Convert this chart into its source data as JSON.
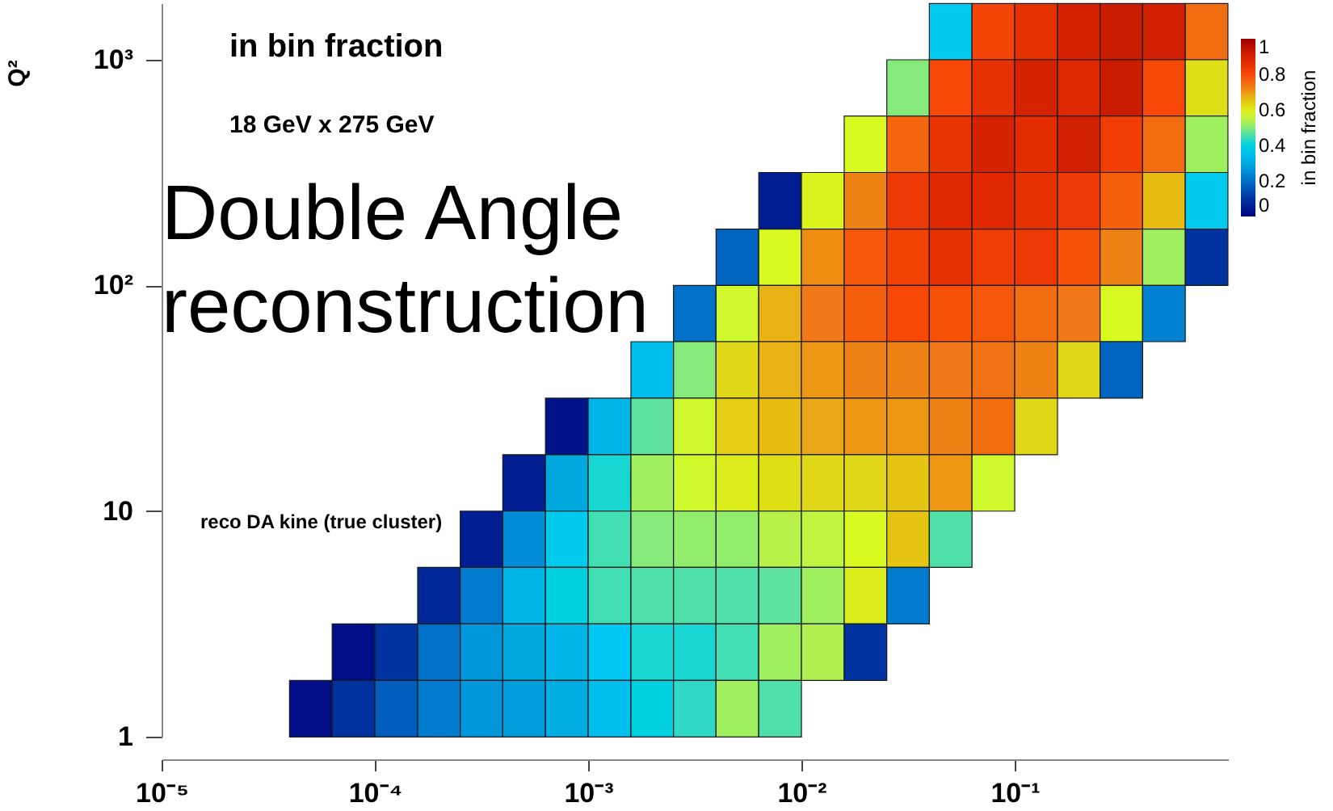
{
  "chart_data": {
    "type": "heatmap",
    "title": "in bin fraction",
    "annotations": [
      "18 GeV x 275 GeV",
      "Double Angle reconstruction",
      "reco DA kine (true cluster)"
    ],
    "ylabel": "Q²",
    "clabel": "in bin fraction",
    "log": "xy",
    "xlim": [
      1e-05,
      1
    ],
    "ylim": [
      1,
      1778
    ],
    "xticks": [
      {
        "value": 1e-05,
        "label": "10⁻⁵"
      },
      {
        "value": 0.0001,
        "label": "10⁻⁴"
      },
      {
        "value": 0.001,
        "label": "10⁻³"
      },
      {
        "value": 0.01,
        "label": "10⁻²"
      },
      {
        "value": 0.1,
        "label": "10⁻¹"
      }
    ],
    "yticks": [
      1,
      10,
      {
        "value": 100,
        "label": "10²"
      },
      {
        "value": 1000,
        "label": "10³"
      }
    ],
    "clim": [
      0,
      1
    ],
    "cticks": [
      0,
      0.2,
      0.4,
      0.6,
      0.8,
      1
    ],
    "x": [
      1.26e-05,
      2e-05,
      3.16e-05,
      5.01e-05,
      7.94e-05,
      0.000126,
      0.0002,
      0.000316,
      0.000501,
      0.000794,
      0.00126,
      0.002,
      0.00316,
      0.00501,
      0.00794,
      0.0126,
      0.02,
      0.0316,
      0.0501,
      0.0794,
      0.126,
      0.2,
      0.316,
      0.501,
      0.794
    ],
    "y": [
      1330,
      750,
      422,
      237,
      133,
      75,
      42.2,
      23.7,
      13.3,
      7.5,
      4.22,
      2.37,
      1.33
    ],
    "cells": [
      [
        null,
        null,
        null,
        null,
        null,
        null,
        null,
        null,
        null,
        null,
        null,
        null,
        null,
        null,
        null,
        null,
        null,
        null,
        0.38,
        0.81,
        0.86,
        0.9,
        0.92,
        0.91,
        0.75
      ],
      [
        null,
        null,
        null,
        null,
        null,
        null,
        null,
        null,
        null,
        null,
        null,
        null,
        null,
        null,
        null,
        null,
        null,
        0.5,
        0.8,
        0.86,
        0.9,
        0.88,
        0.92,
        0.8,
        0.62
      ],
      [
        null,
        null,
        null,
        null,
        null,
        null,
        null,
        null,
        null,
        null,
        null,
        null,
        null,
        null,
        null,
        null,
        0.58,
        0.76,
        0.85,
        0.9,
        0.87,
        0.91,
        0.83,
        0.75,
        0.52
      ],
      [
        null,
        null,
        null,
        null,
        null,
        null,
        null,
        null,
        null,
        null,
        null,
        null,
        null,
        null,
        0.05,
        0.59,
        0.72,
        0.84,
        0.88,
        0.88,
        0.86,
        0.84,
        0.77,
        0.66,
        0.38
      ],
      [
        null,
        null,
        null,
        null,
        null,
        null,
        null,
        null,
        null,
        null,
        null,
        null,
        null,
        0.18,
        0.58,
        0.71,
        0.78,
        0.82,
        0.86,
        0.83,
        0.84,
        0.79,
        0.72,
        0.52,
        0.1
      ],
      [
        null,
        null,
        null,
        null,
        null,
        null,
        null,
        null,
        null,
        null,
        null,
        null,
        0.2,
        0.57,
        0.67,
        0.73,
        0.77,
        0.8,
        0.79,
        0.78,
        0.75,
        0.73,
        0.58,
        0.23,
        null
      ],
      [
        null,
        null,
        null,
        null,
        null,
        null,
        null,
        null,
        null,
        null,
        null,
        0.35,
        0.5,
        0.63,
        0.67,
        0.7,
        0.72,
        0.72,
        0.73,
        0.74,
        0.72,
        0.63,
        0.18,
        null,
        null
      ],
      [
        null,
        null,
        null,
        null,
        null,
        null,
        null,
        null,
        null,
        0.03,
        0.33,
        0.47,
        0.57,
        0.64,
        0.66,
        0.68,
        0.7,
        0.7,
        0.72,
        0.75,
        0.63,
        null,
        null,
        null,
        null
      ],
      [
        null,
        null,
        null,
        null,
        null,
        null,
        null,
        null,
        0.05,
        0.3,
        0.42,
        0.52,
        0.57,
        0.6,
        0.62,
        0.63,
        0.63,
        0.65,
        0.7,
        0.57,
        null,
        null,
        null,
        null,
        null
      ],
      [
        null,
        null,
        null,
        null,
        null,
        null,
        null,
        0.05,
        0.25,
        0.38,
        0.45,
        0.5,
        0.51,
        0.51,
        0.54,
        0.55,
        0.58,
        0.65,
        0.46,
        null,
        null,
        null,
        null,
        null,
        null
      ],
      [
        null,
        null,
        null,
        null,
        null,
        null,
        0.07,
        0.22,
        0.33,
        0.4,
        0.45,
        0.46,
        0.46,
        0.46,
        0.47,
        0.52,
        0.6,
        0.22,
        null,
        null,
        null,
        null,
        null,
        null,
        null
      ],
      [
        null,
        null,
        null,
        null,
        0.02,
        0.1,
        0.2,
        0.27,
        0.3,
        0.33,
        0.37,
        0.42,
        0.42,
        0.45,
        0.52,
        0.53,
        0.1,
        null,
        null,
        null,
        null,
        null,
        null,
        null,
        null
      ],
      [
        null,
        null,
        null,
        0.02,
        0.1,
        0.17,
        0.22,
        0.27,
        0.28,
        0.31,
        0.35,
        0.4,
        0.43,
        0.52,
        0.46,
        null,
        null,
        null,
        null,
        null,
        null,
        null,
        null,
        null,
        null
      ]
    ]
  }
}
